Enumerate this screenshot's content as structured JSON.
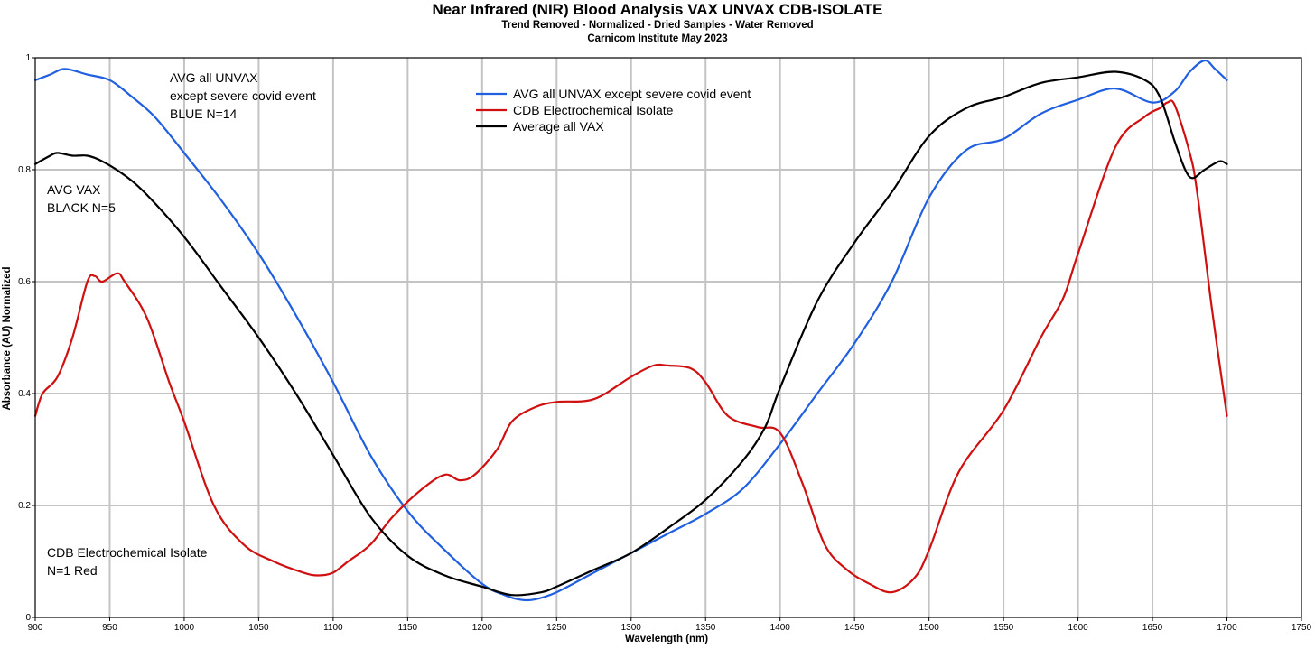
{
  "chart_data": {
    "type": "line",
    "title": "Near Infrared (NIR) Blood Analysis VAX UNVAX CDB-ISOLATE",
    "subtitle_lines": [
      "Trend Removed - Normalized - Dried Samples - Water Removed",
      "Carnicom Institute May 2023"
    ],
    "xlabel": "Wavelength (nm)",
    "ylabel": "Absorbance (AU) Normalized",
    "xlim": [
      900,
      1750
    ],
    "ylim": [
      0,
      1
    ],
    "x_ticks": [
      "900",
      "950",
      "1000",
      "1050",
      "1100",
      "1150",
      "1200",
      "1250",
      "1300",
      "1350",
      "1400",
      "1450",
      "1500",
      "1550",
      "1600",
      "1650",
      "1700",
      "1750"
    ],
    "y_ticks": [
      "0",
      "0.2",
      "0.4",
      "0.6",
      "0.8",
      "1"
    ],
    "grid": true,
    "legend_position": "top-center",
    "annotations": {
      "unvax_lines": [
        "AVG all UNVAX",
        "except severe covid event",
        "BLUE N=14"
      ],
      "vax_lines": [
        "AVG VAX",
        "BLACK N=5"
      ],
      "cdb_lines": [
        "CDB Electrochemical Isolate",
        "N=1 Red"
      ]
    },
    "series": [
      {
        "name": "AVG all UNVAX except severe covid event",
        "color": "#1f5fe0",
        "x": [
          900,
          910,
          920,
          935,
          950,
          965,
          980,
          1000,
          1025,
          1050,
          1075,
          1100,
          1125,
          1150,
          1175,
          1200,
          1215,
          1225,
          1235,
          1250,
          1275,
          1300,
          1325,
          1350,
          1375,
          1400,
          1425,
          1450,
          1475,
          1500,
          1525,
          1550,
          1575,
          1600,
          1625,
          1650,
          1665,
          1675,
          1685,
          1692,
          1700
        ],
        "y": [
          0.96,
          0.97,
          0.98,
          0.97,
          0.96,
          0.93,
          0.895,
          0.83,
          0.745,
          0.65,
          0.54,
          0.42,
          0.29,
          0.19,
          0.12,
          0.06,
          0.04,
          0.032,
          0.032,
          0.045,
          0.08,
          0.115,
          0.15,
          0.185,
          0.23,
          0.31,
          0.4,
          0.49,
          0.6,
          0.75,
          0.835,
          0.855,
          0.9,
          0.925,
          0.945,
          0.92,
          0.94,
          0.975,
          0.995,
          0.98,
          0.96
        ]
      },
      {
        "name": "CDB Electrochemical Isolate",
        "color": "#d01010",
        "x": [
          900,
          905,
          915,
          925,
          935,
          940,
          945,
          955,
          960,
          975,
          990,
          1000,
          1020,
          1040,
          1060,
          1080,
          1090,
          1100,
          1110,
          1125,
          1140,
          1160,
          1175,
          1185,
          1195,
          1210,
          1220,
          1235,
          1250,
          1275,
          1300,
          1315,
          1325,
          1340,
          1350,
          1365,
          1385,
          1400,
          1415,
          1430,
          1445,
          1460,
          1475,
          1490,
          1500,
          1520,
          1550,
          1575,
          1590,
          1600,
          1625,
          1645,
          1655,
          1660,
          1665,
          1675,
          1680,
          1690,
          1700
        ],
        "y": [
          0.36,
          0.4,
          0.43,
          0.5,
          0.6,
          0.61,
          0.6,
          0.615,
          0.6,
          0.535,
          0.42,
          0.35,
          0.2,
          0.13,
          0.1,
          0.08,
          0.075,
          0.08,
          0.1,
          0.13,
          0.18,
          0.23,
          0.255,
          0.245,
          0.255,
          0.3,
          0.35,
          0.375,
          0.385,
          0.39,
          0.43,
          0.45,
          0.45,
          0.445,
          0.42,
          0.36,
          0.34,
          0.33,
          0.24,
          0.13,
          0.085,
          0.06,
          0.045,
          0.07,
          0.12,
          0.26,
          0.37,
          0.5,
          0.57,
          0.65,
          0.84,
          0.895,
          0.91,
          0.92,
          0.915,
          0.83,
          0.76,
          0.55,
          0.36
        ]
      },
      {
        "name": "Average all VAX",
        "color": "#000000",
        "x": [
          900,
          910,
          915,
          925,
          935,
          945,
          960,
          975,
          1000,
          1025,
          1050,
          1075,
          1100,
          1125,
          1150,
          1175,
          1200,
          1220,
          1240,
          1250,
          1275,
          1300,
          1325,
          1350,
          1375,
          1390,
          1400,
          1425,
          1450,
          1475,
          1500,
          1525,
          1550,
          1575,
          1600,
          1625,
          1645,
          1655,
          1665,
          1672,
          1677,
          1685,
          1695,
          1700
        ],
        "y": [
          0.81,
          0.825,
          0.83,
          0.825,
          0.825,
          0.815,
          0.79,
          0.755,
          0.68,
          0.59,
          0.5,
          0.4,
          0.29,
          0.18,
          0.11,
          0.075,
          0.055,
          0.04,
          0.045,
          0.055,
          0.085,
          0.115,
          0.16,
          0.21,
          0.28,
          0.34,
          0.41,
          0.565,
          0.67,
          0.76,
          0.86,
          0.91,
          0.93,
          0.955,
          0.965,
          0.975,
          0.96,
          0.93,
          0.85,
          0.8,
          0.785,
          0.8,
          0.815,
          0.81
        ]
      }
    ]
  }
}
